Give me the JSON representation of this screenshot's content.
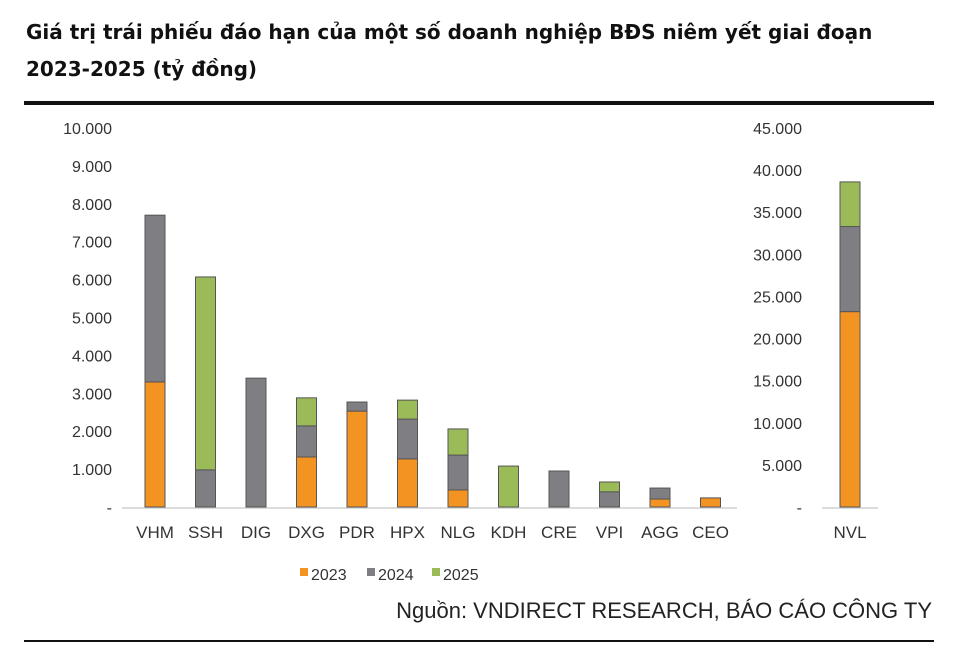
{
  "title": "Giá trị trái phiếu đáo hạn của một số doanh nghiệp BĐS niêm yết giai đoạn 2023-2025 (tỷ đồng)",
  "source": "Nguồn: VNDIRECT RESEARCH, BÁO CÁO CÔNG TY",
  "chart_data": [
    {
      "type": "bar",
      "stacked": true,
      "categories": [
        "VHM",
        "SSH",
        "DIG",
        "DXG",
        "PDR",
        "HPX",
        "NLG",
        "KDH",
        "CRE",
        "VPI",
        "AGG",
        "CEO"
      ],
      "series": [
        {
          "name": "2023",
          "color": "#f39322",
          "values": [
            3300,
            0,
            0,
            1320,
            2530,
            1270,
            450,
            0,
            0,
            0,
            210,
            240
          ]
        },
        {
          "name": "2024",
          "color": "#7f7f83",
          "values": [
            4400,
            980,
            3400,
            820,
            240,
            1050,
            920,
            0,
            950,
            400,
            290,
            0
          ]
        },
        {
          "name": "2025",
          "color": "#9bbb59",
          "values": [
            0,
            5090,
            0,
            740,
            0,
            500,
            690,
            1080,
            0,
            260,
            0,
            0
          ]
        }
      ],
      "ylim": [
        0,
        10000
      ],
      "yticks": [
        "-",
        "1.000",
        "2.000",
        "3.000",
        "4.000",
        "5.000",
        "6.000",
        "7.000",
        "8.000",
        "9.000",
        "10.000"
      ],
      "grid": false
    },
    {
      "type": "bar",
      "stacked": true,
      "categories": [
        "NVL"
      ],
      "series": [
        {
          "name": "2023",
          "color": "#f39322",
          "values": [
            23200
          ]
        },
        {
          "name": "2024",
          "color": "#7f7f83",
          "values": [
            10100
          ]
        },
        {
          "name": "2025",
          "color": "#9bbb59",
          "values": [
            5300
          ]
        }
      ],
      "ylim": [
        0,
        45000
      ],
      "yticks": [
        "-",
        "5.000",
        "10.000",
        "15.000",
        "20.000",
        "25.000",
        "30.000",
        "35.000",
        "40.000",
        "45.000"
      ],
      "grid": false
    }
  ],
  "legend": {
    "placement": "bottom",
    "entries": [
      "2023",
      "2024",
      "2025"
    ]
  }
}
